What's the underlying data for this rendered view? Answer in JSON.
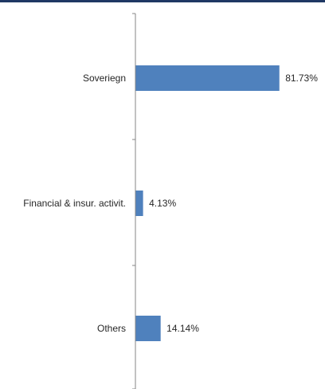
{
  "chart_data": {
    "type": "bar",
    "orientation": "horizontal",
    "categories": [
      "Soveriegn",
      "Financial & insur. activit.",
      "Others"
    ],
    "values": [
      81.73,
      4.13,
      14.14
    ],
    "data_labels": [
      "81.73%",
      "4.13%",
      "14.14%"
    ],
    "title": "",
    "xlabel": "",
    "ylabel": "",
    "xlim": [
      0,
      100
    ],
    "grid": false,
    "legend": "none",
    "colors": {
      "bar": "#4f81bd",
      "axis": "#868686",
      "text": "#262626",
      "top_bar": "#1f3864"
    }
  }
}
